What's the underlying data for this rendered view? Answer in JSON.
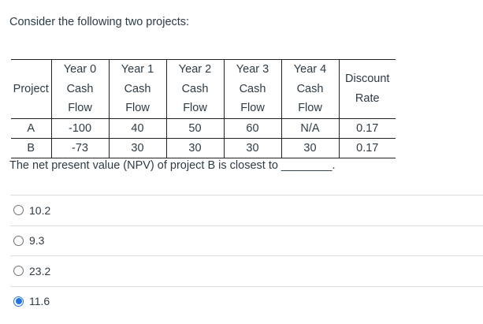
{
  "page": {
    "intro_text": "Consider the following two projects:",
    "prompt_text": "The net present value (NPV) of project B is closest to ________."
  },
  "table": {
    "headers": [
      "Project",
      "Year 0\nCash\nFlow",
      "Year 1\nCash\nFlow",
      "Year 2\nCash\nFlow",
      "Year 3\nCash\nFlow",
      "Year 4\nCash\nFlow",
      "Discount\nRate"
    ],
    "rows": [
      {
        "project": "A",
        "cells": [
          "-100",
          "40",
          "50",
          "60",
          "N/A",
          "0.17"
        ]
      },
      {
        "project": "B",
        "cells": [
          "-73",
          "30",
          "30",
          "30",
          "30",
          "0.17"
        ]
      }
    ]
  },
  "options": [
    {
      "label": "10.2",
      "selected": false
    },
    {
      "label": "9.3",
      "selected": false
    },
    {
      "label": "23.2",
      "selected": false
    },
    {
      "label": "11.6",
      "selected": true
    }
  ],
  "colors": {
    "text": "#2d3b45",
    "table_border": "#212121",
    "divider": "#dcdcdc",
    "radio_border": "#727272",
    "radio_selected": "#2573e2"
  }
}
